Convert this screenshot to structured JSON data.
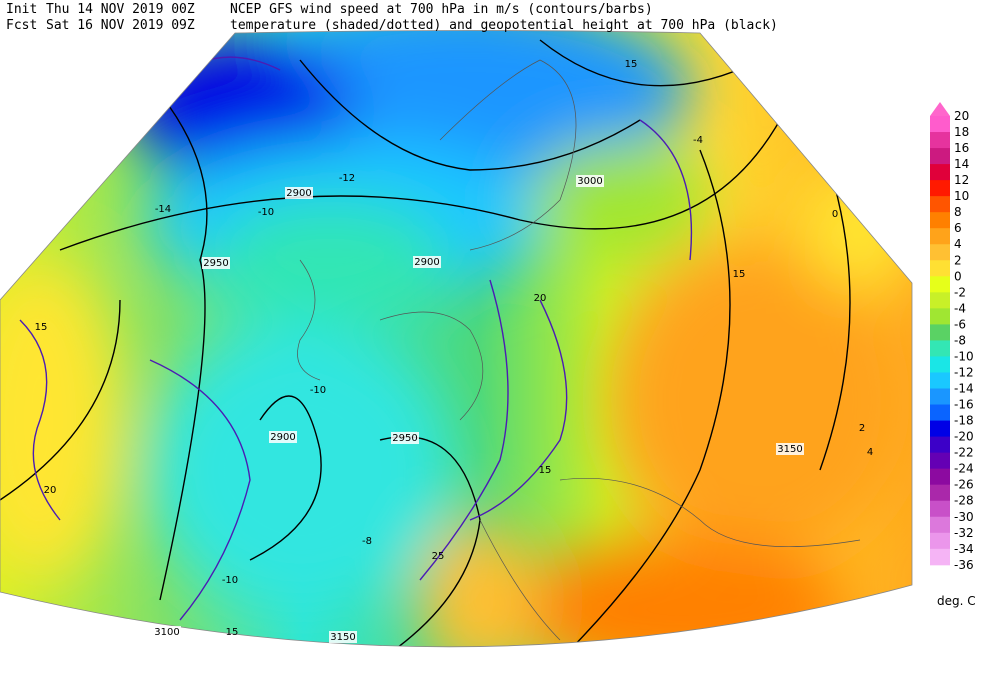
{
  "header": {
    "init_label": "Init",
    "init_time": "Thu 14 NOV 2019 00Z",
    "title_line1": "NCEP GFS wind speed at 700 hPa in m/s (contours/barbs)",
    "fcst_label": "Fcst",
    "fcst_time": "Sat 16 NOV 2019 09Z",
    "title_line2": "temperature (shaded/dotted) and geopotential height at 700 hPa (black)"
  },
  "colorbar": {
    "labels": [
      20,
      18,
      16,
      14,
      12,
      10,
      8,
      6,
      4,
      2,
      0,
      -2,
      -4,
      -6,
      -8,
      -10,
      -12,
      -14,
      -16,
      -18,
      -20,
      -22,
      -24,
      -26,
      -28,
      -30,
      -32,
      -34,
      -36
    ],
    "colors": [
      "#ff5ccc",
      "#e6339e",
      "#cc1a80",
      "#e0003a",
      "#ff1a00",
      "#ff5500",
      "#ff8000",
      "#ffa31a",
      "#ffc033",
      "#ffe033",
      "#e6ff1a",
      "#c8f028",
      "#a0e632",
      "#5ad264",
      "#33e6b4",
      "#1ae6e6",
      "#1ac8ff",
      "#1a96ff",
      "#0a64ff",
      "#0000e6",
      "#3c00c8",
      "#6400b4",
      "#8c0aa0",
      "#aa28aa",
      "#c850c8",
      "#dc78dc",
      "#eb96eb",
      "#f5b4f5"
    ],
    "top_color": "#ff66cc",
    "unit": "deg. C"
  },
  "map_labels": {
    "height": [
      "2900",
      "2950",
      "2900",
      "3000",
      "2900",
      "2950",
      "3150",
      "3100",
      "3150"
    ],
    "temperature": [
      "-10",
      "-12",
      "-14",
      "-10",
      "-8",
      "-10",
      "2",
      "4",
      "0",
      "-4"
    ],
    "wind": [
      "15",
      "20",
      "15",
      "20",
      "25",
      "15",
      "15",
      "15"
    ]
  }
}
